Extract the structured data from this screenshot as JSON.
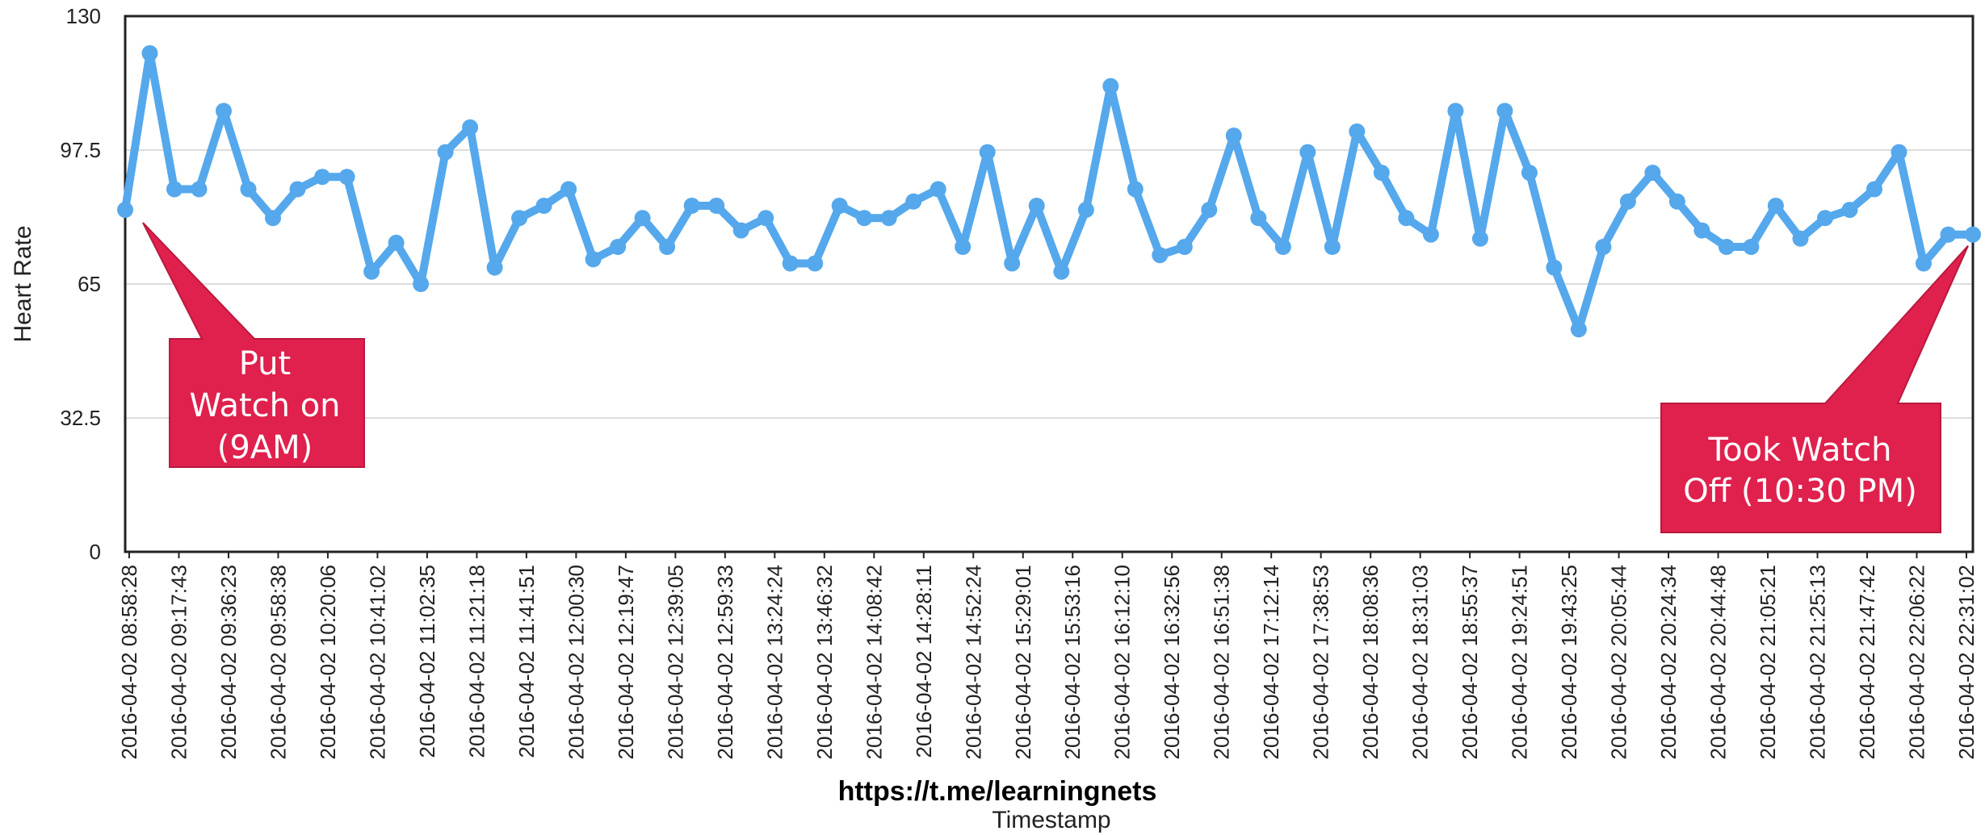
{
  "chart_data": {
    "type": "line",
    "title": "",
    "xlabel": "Timestamp",
    "ylabel": "Heart Rate",
    "ylim": [
      0,
      130
    ],
    "yticks": [
      "0",
      "32.5",
      "65",
      "97.5",
      "130"
    ],
    "grid": true,
    "x_tick_labels": [
      "2016-04-02 08:58:28",
      "2016-04-02 09:17:43",
      "2016-04-02 09:36:23",
      "2016-04-02 09:58:38",
      "2016-04-02 10:20:06",
      "2016-04-02 10:41:02",
      "2016-04-02 11:02:35",
      "2016-04-02 11:21:18",
      "2016-04-02 11:41:51",
      "2016-04-02 12:00:30",
      "2016-04-02 12:19:47",
      "2016-04-02 12:39:05",
      "2016-04-02 12:59:33",
      "2016-04-02 13:24:24",
      "2016-04-02 13:46:32",
      "2016-04-02 14:08:42",
      "2016-04-02 14:28:11",
      "2016-04-02 14:52:24",
      "2016-04-02 15:29:01",
      "2016-04-02 15:53:16",
      "2016-04-02 16:12:10",
      "2016-04-02 16:32:56",
      "2016-04-02 16:51:38",
      "2016-04-02 17:12:14",
      "2016-04-02 17:38:53",
      "2016-04-02 18:08:36",
      "2016-04-02 18:31:03",
      "2016-04-02 18:55:37",
      "2016-04-02 19:24:51",
      "2016-04-02 19:43:25",
      "2016-04-02 20:05:44",
      "2016-04-02 20:24:34",
      "2016-04-02 20:44:48",
      "2016-04-02 21:05:21",
      "2016-04-02 21:25:13",
      "2016-04-02 21:47:42",
      "2016-04-02 22:06:22",
      "2016-04-02 22:31:02"
    ],
    "series": [
      {
        "color": "#55a8ec",
        "values": [
          83,
          121,
          88,
          88,
          107,
          88,
          81,
          88,
          91,
          91,
          68,
          75,
          65,
          97,
          103,
          69,
          81,
          84,
          88,
          71,
          74,
          81,
          74,
          84,
          84,
          78,
          81,
          70,
          70,
          84,
          81,
          81,
          85,
          88,
          74,
          97,
          70,
          84,
          68,
          83,
          113,
          88,
          72,
          74,
          83,
          101,
          81,
          74,
          97,
          74,
          102,
          92,
          81,
          77,
          107,
          76,
          107,
          92,
          69,
          54,
          74,
          85,
          92,
          85,
          78,
          74,
          74,
          84,
          76,
          81,
          83,
          88,
          97,
          70,
          77,
          77
        ]
      }
    ],
    "annotations": [
      {
        "text_lines": [
          "Put",
          "Watch on",
          "(9AM)"
        ],
        "color": "#e0204d",
        "target_point_index": 0
      },
      {
        "text_lines": [
          "Took Watch",
          "Off (10:30 PM)"
        ],
        "color": "#e0204d",
        "target_point_index": 75
      }
    ]
  },
  "watermark": "https://t.me/learningnets"
}
